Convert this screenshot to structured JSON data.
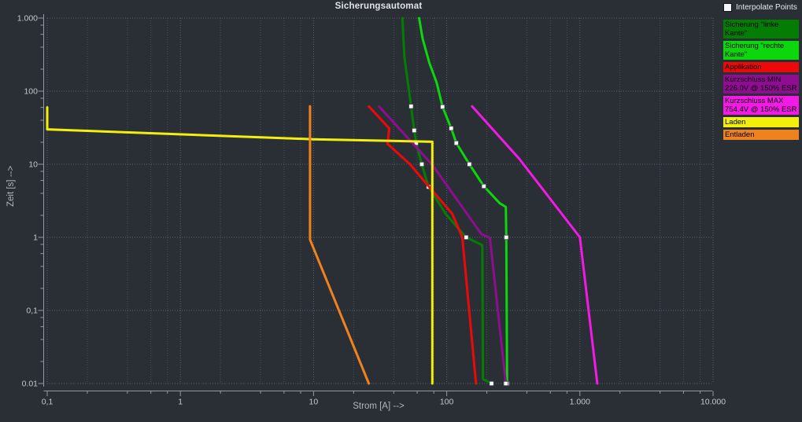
{
  "chart_data": {
    "type": "line",
    "title": "Sicherungsautomat",
    "xlabel": "Strom [A] -->",
    "ylabel": "Zeit [s] -->",
    "x_scale": "log",
    "y_scale": "log",
    "xlim": [
      0.1,
      10000
    ],
    "ylim": [
      0.01,
      1000
    ],
    "x_ticks": [
      {
        "value": 0.1,
        "label": "0,1"
      },
      {
        "value": 1,
        "label": "1"
      },
      {
        "value": 10,
        "label": "10"
      },
      {
        "value": 100,
        "label": "100"
      },
      {
        "value": 1000,
        "label": "1.000"
      },
      {
        "value": 10000,
        "label": "10.000"
      }
    ],
    "y_ticks": [
      {
        "value": 1000,
        "label": "1.000"
      },
      {
        "value": 100,
        "label": "100"
      },
      {
        "value": 10,
        "label": "10"
      },
      {
        "value": 1,
        "label": "1"
      },
      {
        "value": 0.1,
        "label": "0,1"
      },
      {
        "value": 0.01,
        "label": "0.01"
      }
    ],
    "grid": {
      "major_x": true,
      "major_y": true,
      "x_minor_gridline_multiples": [
        2,
        4,
        6,
        8
      ],
      "minor_tick_multiples": [
        2,
        4,
        6,
        8
      ],
      "style": "dotted"
    },
    "legend_position": "right",
    "series": [
      {
        "name": "Sicherung \"linke Kante\"",
        "color": "#037d03",
        "points_A_s": [
          [
            46.5,
            1000
          ],
          [
            48,
            300
          ],
          [
            54,
            62
          ],
          [
            57,
            29
          ],
          [
            59,
            19.5
          ],
          [
            65,
            10
          ],
          [
            73,
            4.9
          ],
          [
            99,
            2.05
          ],
          [
            140,
            1
          ],
          [
            185,
            0.78
          ],
          [
            187,
            0.0115
          ],
          [
            217,
            0.01
          ]
        ],
        "markers_A_s": [
          [
            54,
            62
          ],
          [
            57,
            29
          ],
          [
            59,
            19.5
          ],
          [
            65,
            10
          ],
          [
            73,
            4.9
          ],
          [
            140,
            1
          ],
          [
            217,
            0.01
          ]
        ]
      },
      {
        "name": "Sicherung \"rechte Kante\"",
        "color": "#0cd60c",
        "points_A_s": [
          [
            62,
            1000
          ],
          [
            66,
            516
          ],
          [
            74,
            244
          ],
          [
            84,
            131
          ],
          [
            93,
            61
          ],
          [
            108,
            31
          ],
          [
            118,
            19.5
          ],
          [
            148,
            10
          ],
          [
            190,
            5
          ],
          [
            249,
            2.95
          ],
          [
            278,
            2.6
          ],
          [
            280,
            1
          ],
          [
            284,
            0.01
          ]
        ],
        "markers_A_s": [
          [
            93,
            61
          ],
          [
            108,
            31
          ],
          [
            118,
            19.5
          ],
          [
            148,
            10
          ],
          [
            190,
            5
          ],
          [
            280,
            1
          ],
          [
            284,
            0.01
          ]
        ]
      },
      {
        "name": "Applikation",
        "color": "#ed0909",
        "points_A_s": [
          [
            26,
            62
          ],
          [
            37,
            31
          ],
          [
            36,
            19
          ],
          [
            53,
            10
          ],
          [
            76,
            4.6
          ],
          [
            110,
            2.1
          ],
          [
            131,
            1
          ],
          [
            166,
            0.01
          ]
        ],
        "markers_A_s": []
      },
      {
        "name": "Kurzschluss MIN 226.0V @ 150% ESR",
        "color": "#8f0d90",
        "points_A_s": [
          [
            31,
            62
          ],
          [
            78,
            9.8
          ],
          [
            182,
            1.11
          ],
          [
            211,
            0.98
          ],
          [
            278,
            0.01
          ]
        ],
        "markers_A_s": [
          [
            278,
            0.01
          ]
        ]
      },
      {
        "name": "Kurzschluss MAX 754.4V @ 150% ESR",
        "color": "#f31ae5",
        "points_A_s": [
          [
            155,
            62
          ],
          [
            350,
            11.9
          ],
          [
            1000,
            1
          ],
          [
            1350,
            0.01
          ]
        ],
        "markers_A_s": []
      },
      {
        "name": "Laden",
        "color": "#f2ef0c",
        "points_A_s": [
          [
            0.1,
            60
          ],
          [
            0.1,
            30
          ],
          [
            10,
            22
          ],
          [
            78,
            20.3
          ],
          [
            78,
            0.01
          ]
        ],
        "markers_A_s": []
      },
      {
        "name": "Entladen",
        "color": "#f0821e",
        "points_A_s": [
          [
            9.4,
            62
          ],
          [
            9.4,
            0.93
          ],
          [
            26,
            0.01
          ]
        ],
        "markers_A_s": []
      }
    ]
  },
  "legend": {
    "checkbox_label": "Interpolate Points",
    "checkbox_checked": false,
    "items": [
      {
        "label_lines": [
          "Sicherung \"linke",
          "Kante\""
        ],
        "color": "#037d03"
      },
      {
        "label_lines": [
          "Sicherung \"rechte",
          "Kante\""
        ],
        "color": "#0cd60c"
      },
      {
        "label_lines": [
          "Applikation"
        ],
        "color": "#ed0909"
      },
      {
        "label_lines": [
          "Kurzschluss MIN",
          "226.0V @ 150% ESR"
        ],
        "color": "#8f0d90"
      },
      {
        "label_lines": [
          "Kurzschluss MAX",
          "754.4V @ 150% ESR"
        ],
        "color": "#f31ae5"
      },
      {
        "label_lines": [
          "Laden"
        ],
        "color": "#f2ef0c"
      },
      {
        "label_lines": [
          "Entladen"
        ],
        "color": "#f0821e"
      }
    ]
  },
  "colors": {
    "background": "#2a2f36",
    "grid_major": "#5a626b",
    "grid_minor": "#4a525a",
    "axis": "#949aa2",
    "tick_text": "#c3c7cc",
    "axis_label_text": "#b2b7bd",
    "title_text": "#e1e3e6",
    "marker_fill": "#fafafa",
    "marker_edge": "#3a3f45"
  }
}
